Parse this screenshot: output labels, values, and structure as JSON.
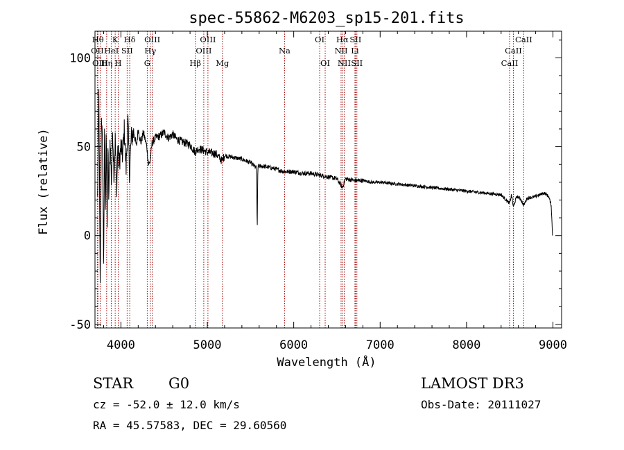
{
  "chart_data": {
    "type": "line",
    "title": "spec-55862-M6203_sp15-201.fits",
    "xlabel": "Wavelength (Å)",
    "ylabel": "Flux (relative)",
    "xlim": [
      3700,
      9100
    ],
    "ylim": [
      -52,
      115
    ],
    "xticks": [
      4000,
      5000,
      6000,
      7000,
      8000,
      9000
    ],
    "yticks": [
      -50,
      0,
      50,
      100
    ],
    "line_color": "#000000",
    "marker_color": "#a00000",
    "spectrum_anchor_points": [
      [
        3730,
        20
      ],
      [
        3745,
        80
      ],
      [
        3760,
        -30
      ],
      [
        3775,
        70
      ],
      [
        3790,
        40
      ],
      [
        3800,
        -20
      ],
      [
        3810,
        60
      ],
      [
        3820,
        10
      ],
      [
        3830,
        65
      ],
      [
        3840,
        0
      ],
      [
        3850,
        50
      ],
      [
        3860,
        20
      ],
      [
        3875,
        55
      ],
      [
        3890,
        30
      ],
      [
        3905,
        60
      ],
      [
        3920,
        35
      ],
      [
        3935,
        55
      ],
      [
        3950,
        25
      ],
      [
        3965,
        50
      ],
      [
        3980,
        40
      ],
      [
        4000,
        50
      ],
      [
        4020,
        45
      ],
      [
        4040,
        60
      ],
      [
        4060,
        38
      ],
      [
        4080,
        65
      ],
      [
        4100,
        35
      ],
      [
        4120,
        55
      ],
      [
        4150,
        58
      ],
      [
        4180,
        50
      ],
      [
        4200,
        60
      ],
      [
        4230,
        52
      ],
      [
        4260,
        58
      ],
      [
        4300,
        50
      ],
      [
        4320,
        40
      ],
      [
        4340,
        42
      ],
      [
        4360,
        52
      ],
      [
        4400,
        55
      ],
      [
        4450,
        56
      ],
      [
        4500,
        58
      ],
      [
        4550,
        55
      ],
      [
        4600,
        57
      ],
      [
        4650,
        54
      ],
      [
        4700,
        53
      ],
      [
        4750,
        52
      ],
      [
        4800,
        51
      ],
      [
        4860,
        47
      ],
      [
        4900,
        49
      ],
      [
        4950,
        48
      ],
      [
        5000,
        47
      ],
      [
        5100,
        46
      ],
      [
        5170,
        42
      ],
      [
        5200,
        45
      ],
      [
        5300,
        44
      ],
      [
        5400,
        43
      ],
      [
        5500,
        41
      ],
      [
        5570,
        38
      ],
      [
        5577,
        0
      ],
      [
        5585,
        39
      ],
      [
        5650,
        39
      ],
      [
        5750,
        38
      ],
      [
        5890,
        36
      ],
      [
        6000,
        36
      ],
      [
        6100,
        35
      ],
      [
        6200,
        35
      ],
      [
        6300,
        34
      ],
      [
        6400,
        33
      ],
      [
        6500,
        32
      ],
      [
        6563,
        27
      ],
      [
        6600,
        32
      ],
      [
        6700,
        31
      ],
      [
        6800,
        31
      ],
      [
        6900,
        30
      ],
      [
        7000,
        30
      ],
      [
        7200,
        29
      ],
      [
        7400,
        28
      ],
      [
        7600,
        27
      ],
      [
        7800,
        26
      ],
      [
        8000,
        25
      ],
      [
        8200,
        24
      ],
      [
        8400,
        23
      ],
      [
        8498,
        18
      ],
      [
        8520,
        23
      ],
      [
        8542,
        16
      ],
      [
        8580,
        22
      ],
      [
        8620,
        21
      ],
      [
        8662,
        17
      ],
      [
        8700,
        21
      ],
      [
        8800,
        22
      ],
      [
        8900,
        24
      ],
      [
        8950,
        22
      ],
      [
        8980,
        17
      ],
      [
        8995,
        0
      ]
    ],
    "spectral_lines": [
      {
        "label": "Hθ",
        "x": 3734,
        "row": 0
      },
      {
        "label": "OII",
        "x": 3727,
        "row": 1
      },
      {
        "label": "OIII",
        "x": 3760,
        "row": 2
      },
      {
        "label": "K",
        "x": 3934,
        "row": 0
      },
      {
        "label": "HeI",
        "x": 3889,
        "row": 1
      },
      {
        "label": "Hη",
        "x": 3835,
        "row": 2
      },
      {
        "label": "H",
        "x": 3969,
        "row": 2
      },
      {
        "label": "SII",
        "x": 4072,
        "row": 1
      },
      {
        "label": "Hδ",
        "x": 4102,
        "row": 0
      },
      {
        "label": "OIII",
        "x": 4363,
        "row": 0
      },
      {
        "label": "Hγ",
        "x": 4340,
        "row": 1
      },
      {
        "label": "G",
        "x": 4305,
        "row": 2
      },
      {
        "label": "Hβ",
        "x": 4861,
        "row": 2
      },
      {
        "label": "OIII",
        "x": 5007,
        "row": 0
      },
      {
        "label": "OIII",
        "x": 4959,
        "row": 1
      },
      {
        "label": "Mg",
        "x": 5175,
        "row": 2
      },
      {
        "label": "Na",
        "x": 5894,
        "row": 1
      },
      {
        "label": "OI",
        "x": 6300,
        "row": 0
      },
      {
        "label": "OI",
        "x": 6364,
        "row": 2
      },
      {
        "label": "Hα",
        "x": 6563,
        "row": 0
      },
      {
        "label": "NII",
        "x": 6548,
        "row": 1
      },
      {
        "label": "NII",
        "x": 6584,
        "row": 2
      },
      {
        "label": "SII",
        "x": 6716,
        "row": 0
      },
      {
        "label": "Li",
        "x": 6708,
        "row": 1
      },
      {
        "label": "SII",
        "x": 6731,
        "row": 2
      },
      {
        "label": "CaII",
        "x": 8662,
        "row": 0
      },
      {
        "label": "CaII",
        "x": 8542,
        "row": 1
      },
      {
        "label": "CaII",
        "x": 8498,
        "row": 2
      }
    ]
  },
  "info": {
    "object_class": "STAR",
    "subclass": "G0",
    "survey": "LAMOST DR3",
    "redshift": "cz = -52.0 ± 12.0 km/s",
    "obs_date": "Obs-Date: 20111027",
    "coords": "RA =  45.57583, DEC =  29.60560"
  }
}
